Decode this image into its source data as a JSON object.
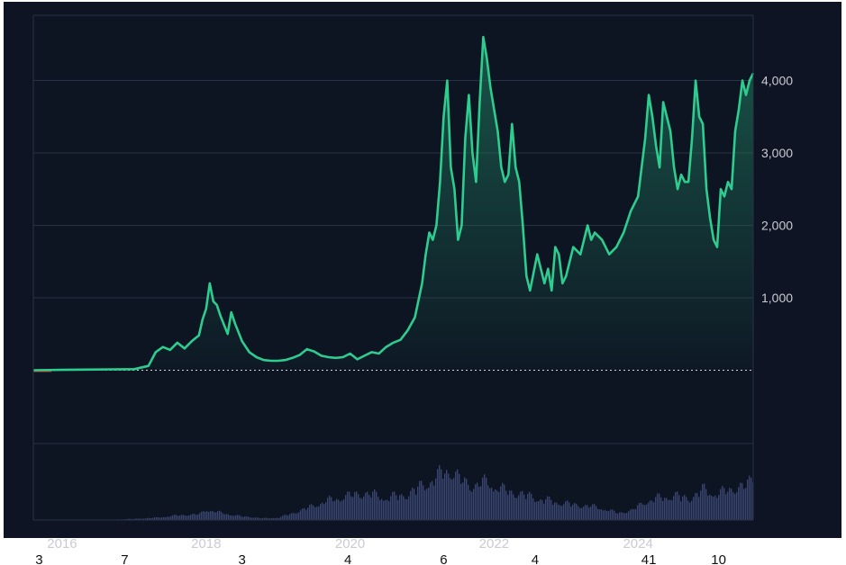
{
  "colors": {
    "background": "#0f1424",
    "frame_bg": "#0d1422",
    "grid": "#2a3245",
    "line": "#2ecc8f",
    "area_top": "#1d6b55",
    "volume": "#3a4570",
    "tick_text": "#c9cbd2",
    "baseline": "#cfd3dc",
    "negative": "#c0392b"
  },
  "chart_data": {
    "type": "area",
    "title": "",
    "xlabel": "",
    "ylabel": "",
    "x_ticks": [
      "2016",
      "2018",
      "2020",
      "2022",
      "2024"
    ],
    "y_ticks": [
      "1,000",
      "2,000",
      "3,000",
      "4,000"
    ],
    "y_tick_values": [
      1000,
      2000,
      3000,
      4000
    ],
    "xlim": [
      2015.6,
      2025.6
    ],
    "ylim": [
      -1000,
      4900
    ],
    "bottom_labels": [
      {
        "text": "3",
        "x": 2015.68
      },
      {
        "text": "7",
        "x": 2016.87
      },
      {
        "text": "3",
        "x": 2018.5
      },
      {
        "text": "4",
        "x": 2019.97
      },
      {
        "text": "6",
        "x": 2021.3
      },
      {
        "text": "4",
        "x": 2022.57
      },
      {
        "text": "41",
        "x": 2024.15
      },
      {
        "text": "10",
        "x": 2025.12
      }
    ],
    "series": [
      {
        "x": [
          2015.6,
          2016.0,
          2016.5,
          2017.0,
          2017.2,
          2017.3,
          2017.4,
          2017.5,
          2017.6,
          2017.7,
          2017.8,
          2017.9,
          2017.95,
          2018.0,
          2018.05,
          2018.1,
          2018.15,
          2018.2,
          2018.3,
          2018.35,
          2018.4,
          2018.5,
          2018.6,
          2018.7,
          2018.8,
          2018.9,
          2019.0,
          2019.1,
          2019.2,
          2019.3,
          2019.4,
          2019.5,
          2019.6,
          2019.7,
          2019.8,
          2019.9,
          2020.0,
          2020.1,
          2020.2,
          2020.3,
          2020.4,
          2020.5,
          2020.6,
          2020.7,
          2020.8,
          2020.9,
          2021.0,
          2021.05,
          2021.1,
          2021.15,
          2021.2,
          2021.25,
          2021.3,
          2021.35,
          2021.4,
          2021.45,
          2021.5,
          2021.55,
          2021.6,
          2021.65,
          2021.7,
          2021.75,
          2021.8,
          2021.85,
          2021.9,
          2021.95,
          2022.0,
          2022.05,
          2022.1,
          2022.15,
          2022.2,
          2022.25,
          2022.3,
          2022.35,
          2022.4,
          2022.45,
          2022.5,
          2022.6,
          2022.7,
          2022.75,
          2022.8,
          2022.85,
          2022.9,
          2022.95,
          2023.0,
          2023.1,
          2023.2,
          2023.3,
          2023.35,
          2023.4,
          2023.5,
          2023.6,
          2023.7,
          2023.8,
          2023.9,
          2024.0,
          2024.1,
          2024.15,
          2024.2,
          2024.25,
          2024.3,
          2024.35,
          2024.4,
          2024.45,
          2024.5,
          2024.55,
          2024.6,
          2024.65,
          2024.7,
          2024.75,
          2024.8,
          2024.85,
          2024.9,
          2024.95,
          2025.0,
          2025.05,
          2025.1,
          2025.15,
          2025.2,
          2025.25,
          2025.3,
          2025.35,
          2025.4,
          2025.45,
          2025.5,
          2025.55,
          2025.6
        ],
        "values": [
          0,
          5,
          10,
          15,
          60,
          250,
          320,
          280,
          380,
          300,
          400,
          480,
          700,
          850,
          1200,
          950,
          900,
          750,
          500,
          800,
          650,
          400,
          250,
          180,
          140,
          130,
          130,
          140,
          170,
          210,
          290,
          260,
          200,
          180,
          170,
          180,
          230,
          150,
          200,
          250,
          230,
          320,
          380,
          420,
          550,
          730,
          1200,
          1600,
          1900,
          1800,
          2000,
          2600,
          3500,
          4000,
          2800,
          2500,
          1800,
          2000,
          3200,
          3800,
          3000,
          2600,
          3700,
          4600,
          4300,
          3900,
          3600,
          3300,
          2800,
          2600,
          2700,
          3400,
          2800,
          2600,
          2000,
          1300,
          1100,
          1600,
          1200,
          1400,
          1100,
          1700,
          1600,
          1200,
          1300,
          1700,
          1600,
          2000,
          1800,
          1900,
          1800,
          1600,
          1700,
          1900,
          2200,
          2400,
          3200,
          3800,
          3500,
          3100,
          2800,
          3700,
          3500,
          3300,
          2800,
          2500,
          2700,
          2600,
          2600,
          3200,
          4000,
          3500,
          3400,
          2500,
          2100,
          1800,
          1700,
          2500,
          2400,
          2600,
          2500,
          3300,
          3600,
          4000,
          3800,
          4000,
          4100
        ]
      }
    ],
    "volume": {
      "x": [
        2015.6,
        2016.0,
        2016.5,
        2017.0,
        2017.3,
        2017.6,
        2017.9,
        2018.0,
        2018.2,
        2018.5,
        2018.8,
        2019.0,
        2019.3,
        2019.6,
        2019.9,
        2020.2,
        2020.5,
        2020.8,
        2021.0,
        2021.2,
        2021.35,
        2021.5,
        2021.7,
        2021.9,
        2022.1,
        2022.3,
        2022.5,
        2022.7,
        2022.9,
        2023.1,
        2023.3,
        2023.5,
        2023.7,
        2023.9,
        2024.1,
        2024.3,
        2024.5,
        2024.7,
        2024.9,
        2025.1,
        2025.3,
        2025.5,
        2025.6
      ],
      "values": [
        0,
        0,
        0,
        2,
        4,
        8,
        10,
        18,
        12,
        6,
        3,
        4,
        16,
        30,
        40,
        46,
        38,
        44,
        60,
        72,
        90,
        70,
        58,
        65,
        52,
        46,
        40,
        34,
        30,
        26,
        24,
        20,
        12,
        16,
        32,
        38,
        42,
        36,
        52,
        44,
        54,
        58,
        75
      ]
    }
  }
}
